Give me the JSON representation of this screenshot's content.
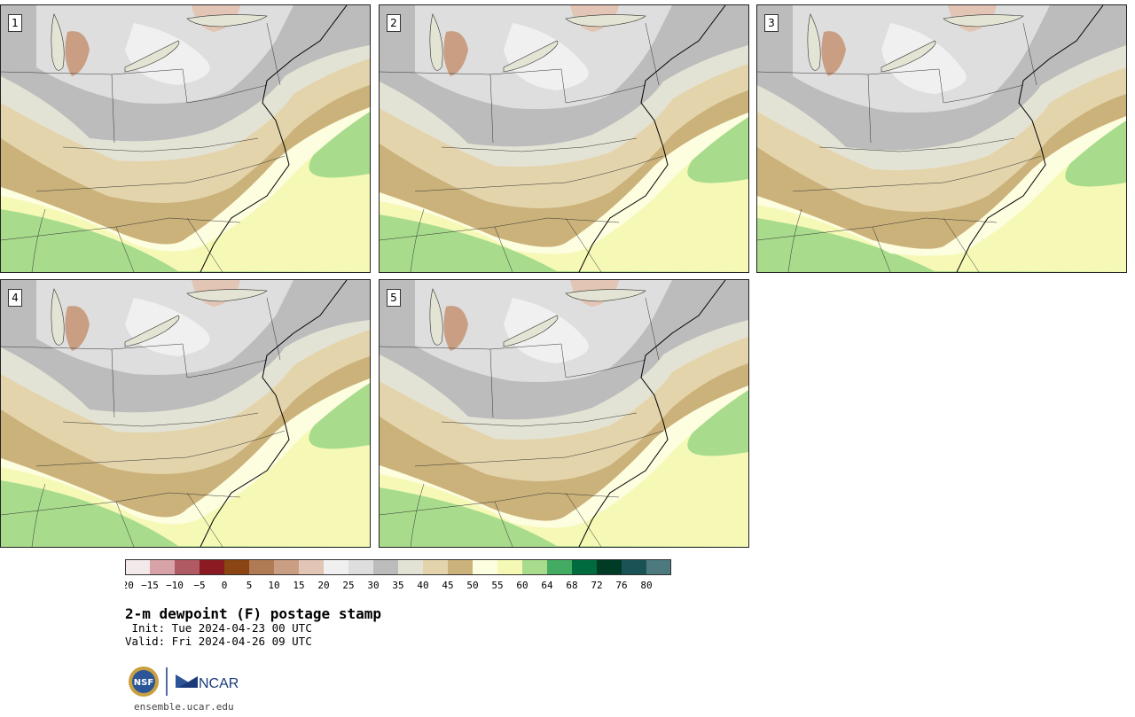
{
  "panels": [
    {
      "label": "1"
    },
    {
      "label": "2"
    },
    {
      "label": "3"
    },
    {
      "label": "4"
    },
    {
      "label": "5"
    }
  ],
  "colorbar": {
    "bins": [
      {
        "color": "#f3e8ea"
      },
      {
        "color": "#d8a3a8"
      },
      {
        "color": "#b05a63"
      },
      {
        "color": "#8b1a22"
      },
      {
        "color": "#8a4512"
      },
      {
        "color": "#b07a55"
      },
      {
        "color": "#c99e83"
      },
      {
        "color": "#e2c5b4"
      },
      {
        "color": "#f0f0f0"
      },
      {
        "color": "#dedede"
      },
      {
        "color": "#bcbcbc"
      },
      {
        "color": "#e3e3d5"
      },
      {
        "color": "#e4d4ac"
      },
      {
        "color": "#cbb27a"
      },
      {
        "color": "#fdfde0"
      },
      {
        "color": "#f6f9b6"
      },
      {
        "color": "#a8dc8c"
      },
      {
        "color": "#44ac62"
      },
      {
        "color": "#006b3e"
      },
      {
        "color": "#003c25"
      },
      {
        "color": "#1a5355"
      },
      {
        "color": "#4d7a7e"
      }
    ],
    "ticks": [
      "-20",
      "-15",
      "-10",
      "-5",
      "0",
      "5",
      "10",
      "15",
      "20",
      "25",
      "30",
      "35",
      "40",
      "45",
      "50",
      "55",
      "60",
      "64",
      "68",
      "72",
      "76",
      "80"
    ]
  },
  "title": "2-m dewpoint (F) postage stamp",
  "init": " Init: Tue 2024-04-23 00 UTC",
  "valid": "Valid: Fri 2024-04-26 09 UTC",
  "logos": {
    "nsf": "NSF",
    "ncar": "NCAR"
  },
  "url": "ensemble.ucar.edu"
}
